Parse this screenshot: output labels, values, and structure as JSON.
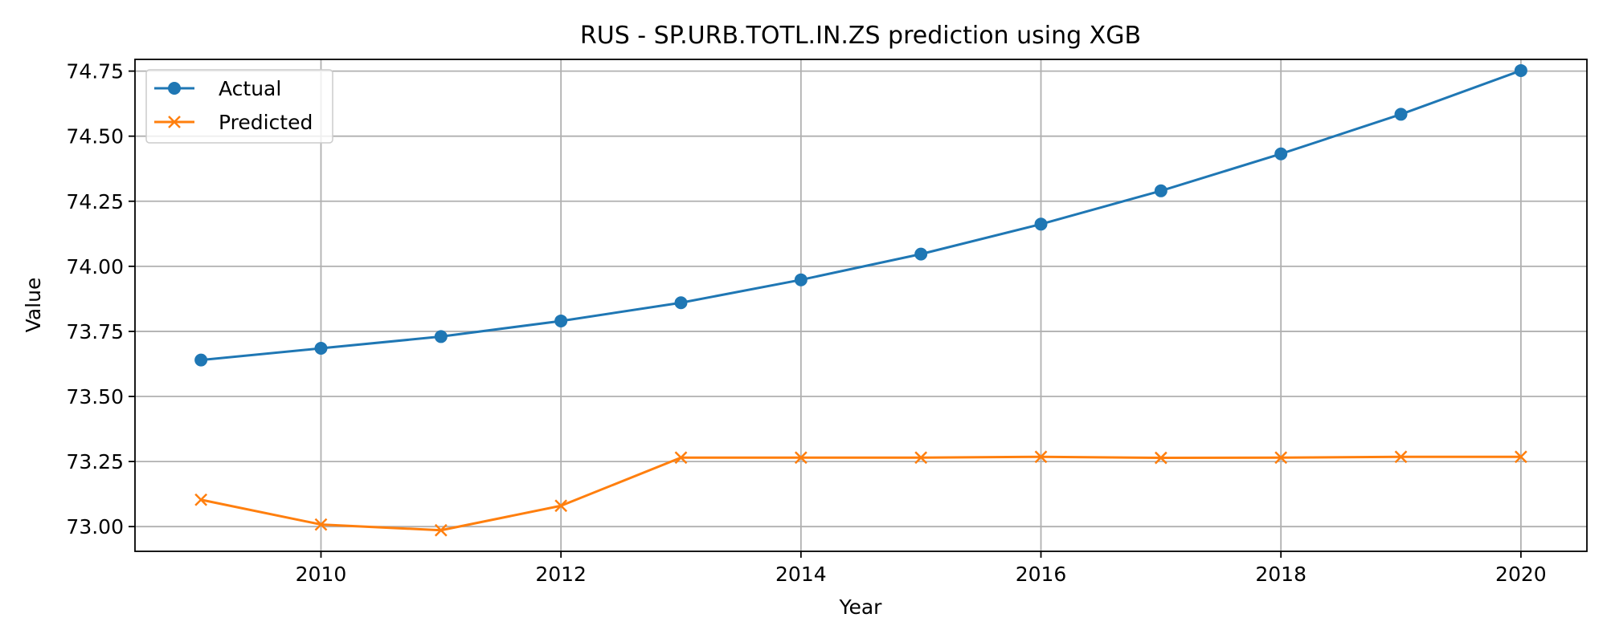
{
  "chart_data": {
    "type": "line",
    "title": "RUS - SP.URB.TOTL.IN.ZS prediction using XGB",
    "xlabel": "Year",
    "ylabel": "Value",
    "x": [
      2009,
      2010,
      2011,
      2012,
      2013,
      2014,
      2015,
      2016,
      2017,
      2018,
      2019,
      2020
    ],
    "xlim": [
      2008.45,
      2020.55
    ],
    "ylim": [
      72.905,
      74.795
    ],
    "xticks": [
      2010,
      2012,
      2014,
      2016,
      2018,
      2020
    ],
    "yticks": [
      73.0,
      73.25,
      73.5,
      73.75,
      74.0,
      74.25,
      74.5,
      74.75
    ],
    "xtick_labels": [
      "2010",
      "2012",
      "2014",
      "2016",
      "2018",
      "2020"
    ],
    "ytick_labels": [
      "73.00",
      "73.25",
      "73.50",
      "73.75",
      "74.00",
      "74.25",
      "74.50",
      "74.75"
    ],
    "grid": true,
    "legend_position": "top-left",
    "series": [
      {
        "name": "Actual",
        "color": "#1f77b4",
        "marker": "circle",
        "values": [
          73.64,
          73.685,
          73.73,
          73.79,
          73.86,
          73.948,
          74.047,
          74.162,
          74.29,
          74.432,
          74.584,
          74.752
        ]
      },
      {
        "name": "Predicted",
        "color": "#ff7f0e",
        "marker": "x",
        "values": [
          73.103,
          73.008,
          72.986,
          73.08,
          73.265,
          73.265,
          73.265,
          73.268,
          73.264,
          73.265,
          73.268,
          73.268
        ]
      }
    ]
  }
}
